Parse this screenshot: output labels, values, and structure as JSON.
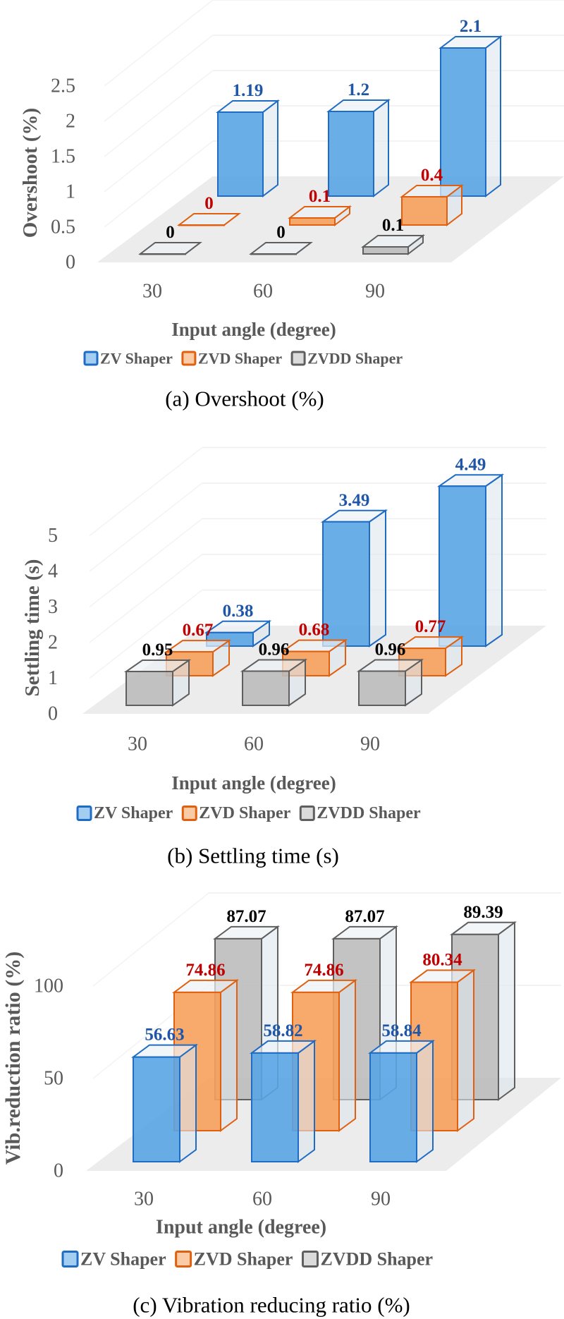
{
  "series_styles": {
    "ZV Shaper": {
      "fill": "#5aa5e6",
      "stroke": "#1f6cc4",
      "label_color": "#1f56a8"
    },
    "ZVD Shaper": {
      "fill": "#f7a05c",
      "stroke": "#e0600f",
      "label_color": "#c00000"
    },
    "ZVDD Shaper": {
      "fill": "#bdbdbd",
      "stroke": "#5f5f5f",
      "label_color": "#000000"
    }
  },
  "chart_data": [
    {
      "type": "bar",
      "title": "(a) Overshoot (%)",
      "xlabel": "Input angle (degree)",
      "ylabel": "Overshoot (%)",
      "categories": [
        "30",
        "60",
        "90"
      ],
      "yticks": [
        "0",
        "0.5",
        "1",
        "1.5",
        "2",
        "2.5"
      ],
      "ylim": [
        0,
        2.5
      ],
      "legend_position": "bottom",
      "series": [
        {
          "name": "ZV Shaper",
          "values": [
            1.19,
            1.2,
            2.1
          ]
        },
        {
          "name": "ZVD Shaper",
          "values": [
            0,
            0.1,
            0.4
          ]
        },
        {
          "name": "ZVDD Shaper",
          "values": [
            0,
            0,
            0.1
          ]
        }
      ]
    },
    {
      "type": "bar",
      "title": "(b) Settling time (s)",
      "xlabel": "Input angle (degree)",
      "ylabel": "Settling time (s)",
      "categories": [
        "30",
        "60",
        "90"
      ],
      "yticks": [
        "0",
        "1",
        "2",
        "3",
        "4",
        "5"
      ],
      "ylim": [
        0,
        5
      ],
      "legend_position": "bottom",
      "series": [
        {
          "name": "ZV Shaper",
          "values": [
            0.38,
            3.49,
            4.49
          ]
        },
        {
          "name": "ZVD Shaper",
          "values": [
            0.67,
            0.68,
            0.77
          ]
        },
        {
          "name": "ZVDD Shaper",
          "values": [
            0.95,
            0.96,
            0.96
          ]
        }
      ]
    },
    {
      "type": "bar",
      "title": "(c) Vibration reducing ratio (%)",
      "xlabel": "Input angle (degree)",
      "ylabel": "Vib.reduction ratio (%)",
      "categories": [
        "30",
        "60",
        "90"
      ],
      "yticks": [
        "0",
        "50",
        "100"
      ],
      "ylim": [
        0,
        100
      ],
      "legend_position": "bottom",
      "series": [
        {
          "name": "ZV Shaper",
          "values": [
            56.63,
            58.82,
            58.84
          ]
        },
        {
          "name": "ZVD Shaper",
          "values": [
            74.86,
            74.86,
            80.34
          ]
        },
        {
          "name": "ZVDD Shaper",
          "values": [
            87.07,
            87.07,
            89.39
          ]
        }
      ]
    }
  ]
}
